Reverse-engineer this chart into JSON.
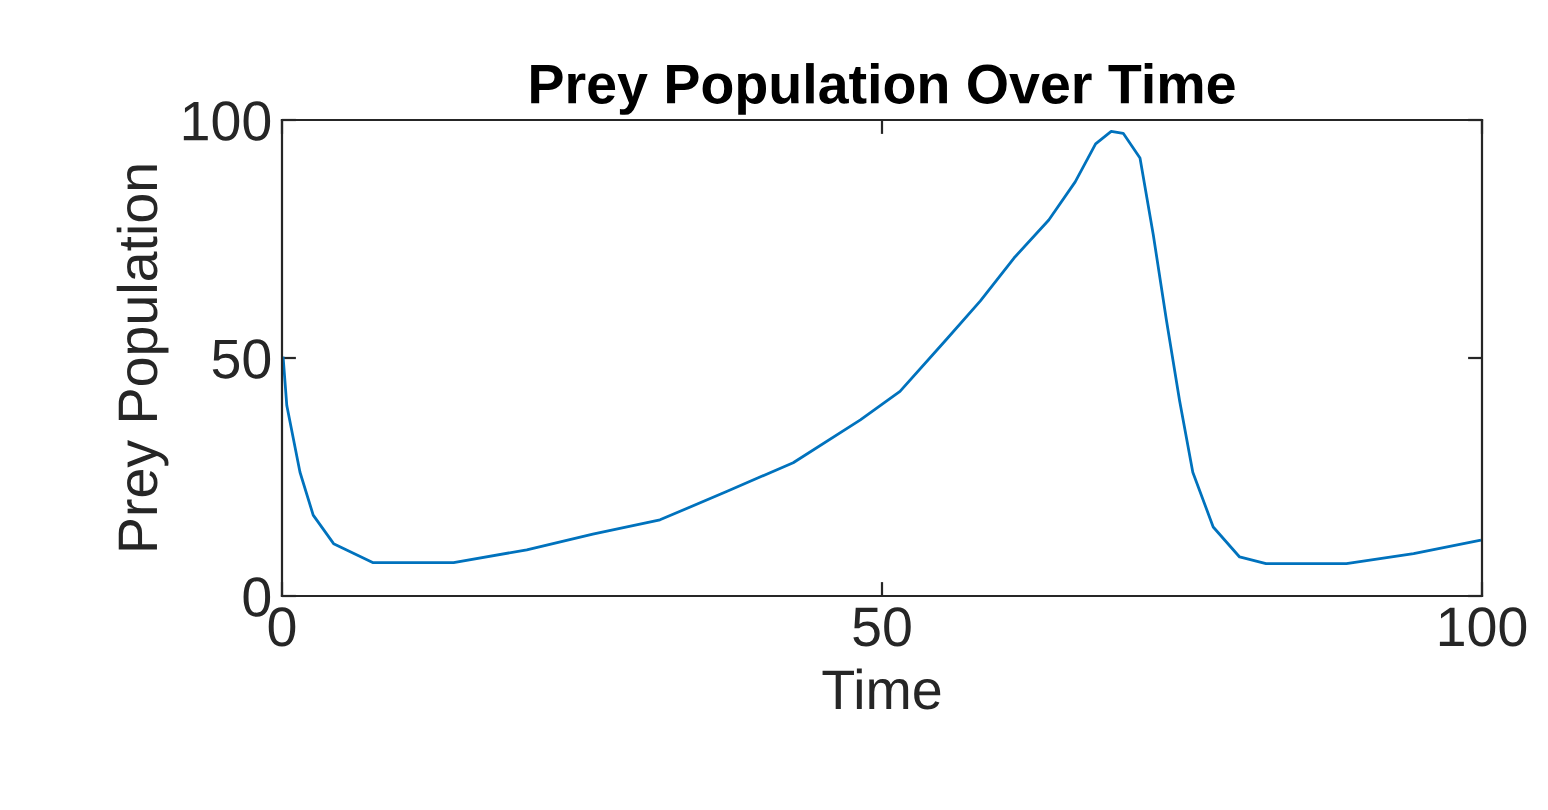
{
  "chart_data": {
    "type": "line",
    "title": "Prey Population Over Time",
    "xlabel": "Time",
    "ylabel": "Prey Population",
    "x": [
      0.1,
      0.4,
      1.5,
      2.6,
      4.3,
      7.6,
      14.3,
      20.4,
      25.9,
      31.5,
      37.1,
      42.6,
      48.2,
      51.5,
      55.4,
      58.2,
      61,
      63.9,
      66.1,
      67.8,
      69.1,
      70.1,
      71.5,
      72.6,
      73.7,
      74.8,
      75.9,
      77.6,
      79.8,
      82,
      88.7,
      94.3,
      99.8
    ],
    "series": [
      {
        "color": "#0072bd",
        "values": [
          50,
          40,
          26,
          17,
          11,
          7,
          7,
          9.7,
          13,
          16,
          22,
          28,
          37,
          43,
          54,
          62,
          71,
          79,
          87,
          95,
          97.6,
          97.2,
          92,
          76,
          58,
          41,
          26,
          14.5,
          8.2,
          6.8,
          6.8,
          8.9,
          11.7
        ]
      }
    ],
    "xlim": [
      0,
      100
    ],
    "ylim": [
      0,
      100
    ],
    "xticks": [
      0,
      50,
      100
    ],
    "yticks": [
      0,
      50,
      100
    ],
    "grid": false,
    "line_style": "solid"
  }
}
